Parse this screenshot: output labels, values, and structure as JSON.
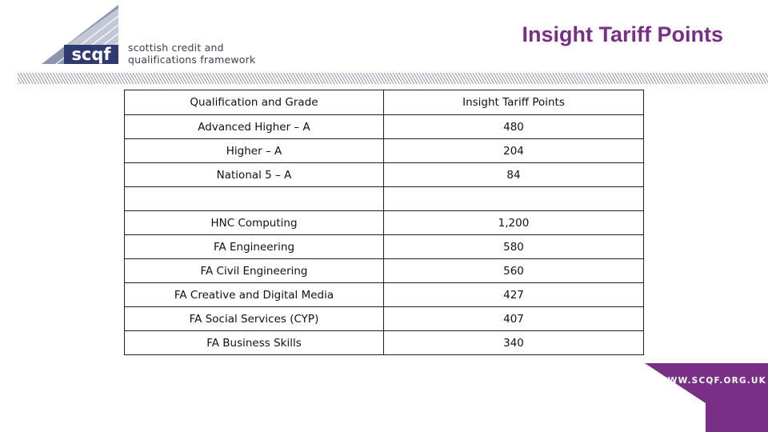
{
  "brand": {
    "logo_mark": "scqf",
    "logo_line1": "scottish credit and",
    "logo_line2": "qualifications framework",
    "url": "WWW.SCQF.ORG.UK",
    "colors": {
      "purple": "#7a2f86",
      "navy": "#2f3a6e",
      "grey_blue": "#8d96ad"
    }
  },
  "slide": {
    "title": "Insight Tariff Points"
  },
  "table": {
    "headers": [
      "Qualification and Grade",
      "Insight Tariff Points"
    ],
    "rows": [
      [
        "Advanced Higher – A",
        "480"
      ],
      [
        "Higher – A",
        "204"
      ],
      [
        "National 5 – A",
        "84"
      ],
      [
        "",
        ""
      ],
      [
        "HNC Computing",
        "1,200"
      ],
      [
        "FA Engineering",
        "580"
      ],
      [
        "FA Civil Engineering",
        "560"
      ],
      [
        "FA Creative and Digital Media",
        "427"
      ],
      [
        "FA Social Services (CYP)",
        "407"
      ],
      [
        "FA Business Skills",
        "340"
      ]
    ]
  }
}
